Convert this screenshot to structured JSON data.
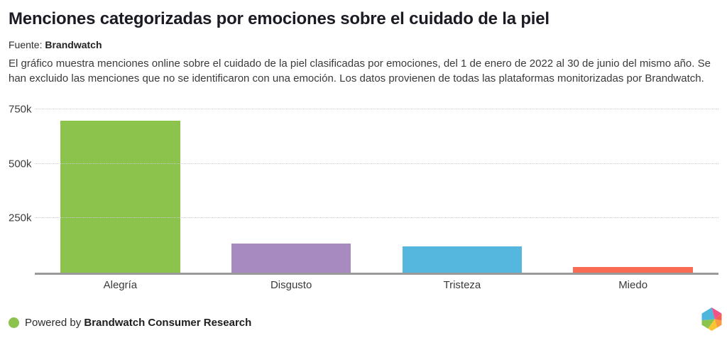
{
  "header": {
    "title": "Menciones categorizadas por emociones sobre el cuidado de la piel",
    "source_label": "Fuente:",
    "source_name": "Brandwatch",
    "description": "El gráfico muestra menciones online sobre el cuidado de la piel clasificadas por emociones, del 1 de enero de 2022 al 30 de junio del mismo año. Se han excluido las menciones que no se identificaron con una emoción. Los datos provienen de todas las plataformas monitorizadas por Brandwatch."
  },
  "chart_data": {
    "type": "bar",
    "categories": [
      "Alegría",
      "Disgusto",
      "Tristeza",
      "Miedo"
    ],
    "values": [
      697000,
      134000,
      121000,
      26000
    ],
    "colors": [
      "#8bc34c",
      "#a78bc0",
      "#55b7dd",
      "#f96b52"
    ],
    "title": "Menciones categorizadas por emociones sobre el cuidado de la piel",
    "xlabel": "",
    "ylabel": "",
    "ylim": [
      0,
      750000
    ],
    "yticks": [
      {
        "value": 250000,
        "label": "250k"
      },
      {
        "value": 500000,
        "label": "500k"
      },
      {
        "value": 750000,
        "label": "750k"
      }
    ],
    "grid": "horizontal-dotted",
    "legend": "none"
  },
  "footer": {
    "powered_by": "Powered by",
    "brand": "Brandwatch Consumer Research",
    "dot_color": "#8bc34c",
    "logo_name": "brandwatch-hexagon-logo",
    "logo_colors": [
      "#4eb6dc",
      "#8bc34c",
      "#f9c531",
      "#f99b3e",
      "#f4604e",
      "#ee5586"
    ]
  },
  "axis_style": {
    "baseline_color": "#9a9a9c",
    "gridline_color": "#c9c9c9"
  }
}
